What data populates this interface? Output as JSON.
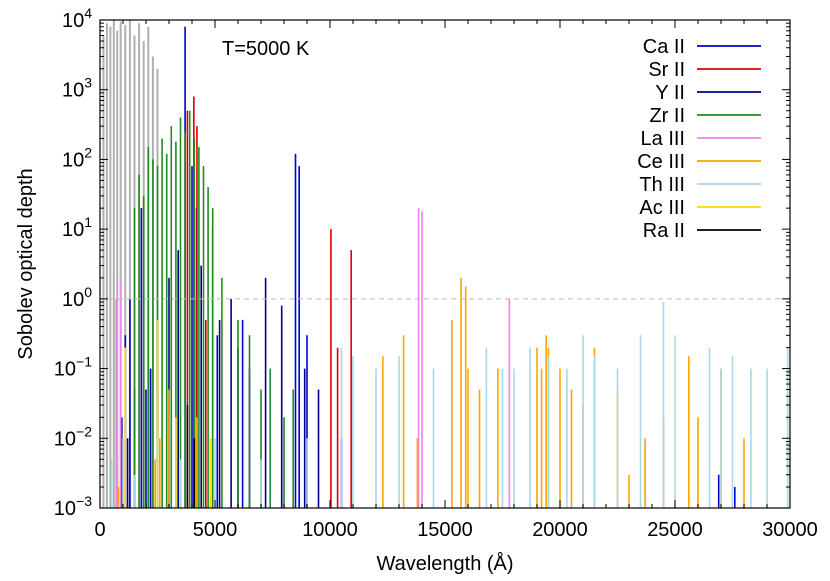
{
  "chart_data": {
    "type": "line",
    "annotation": "T=5000 K",
    "xlabel": "Wavelength (Å)",
    "ylabel": "Sobolev optical depth",
    "xlim": [
      0,
      30000
    ],
    "ylim": [
      0.001,
      10000
    ],
    "y_scale": "log",
    "x_ticks": [
      "0",
      "5000",
      "10000",
      "15000",
      "20000",
      "25000",
      "30000"
    ],
    "x_tick_values": [
      0,
      5000,
      10000,
      15000,
      20000,
      25000,
      30000
    ],
    "y_ticks": [
      {
        "value": 0.001,
        "base": "10",
        "exp": "−3"
      },
      {
        "value": 0.01,
        "base": "10",
        "exp": "−2"
      },
      {
        "value": 0.1,
        "base": "10",
        "exp": "−1"
      },
      {
        "value": 1,
        "base": "10",
        "exp": "0"
      },
      {
        "value": 10,
        "base": "10",
        "exp": "1"
      },
      {
        "value": 100,
        "base": "10",
        "exp": "2"
      },
      {
        "value": 1000,
        "base": "10",
        "exp": "3"
      },
      {
        "value": 10000,
        "base": "10",
        "exp": "4"
      }
    ],
    "reference_line": {
      "y": 1,
      "style": "dashed",
      "color": "#bbbbbb"
    },
    "legend_position": "top-right",
    "background_series": {
      "color": "#b0b0b0",
      "x": [
        150,
        300,
        450,
        600,
        750,
        900,
        1100,
        1300,
        1500,
        1700,
        1900,
        2100,
        2300,
        2500
      ],
      "y": [
        6000,
        9000,
        8000,
        10000,
        7000,
        9500,
        8500,
        10000,
        6000,
        9000,
        5000,
        8000,
        3000,
        2000
      ]
    },
    "series": [
      {
        "name": "Ca II",
        "color": "#0000cc",
        "x": [
          950,
          1100,
          1300,
          1500,
          1800,
          2200,
          3700,
          4000,
          4200,
          5100,
          6200,
          8500,
          8660,
          9000,
          10500,
          26900,
          27600
        ],
        "y": [
          0.02,
          0.3,
          1.0,
          0.05,
          20,
          0.1,
          8000,
          80,
          20,
          0.3,
          0.5,
          120,
          80,
          0.3,
          0.01,
          0.003,
          0.002
        ]
      },
      {
        "name": "Sr II",
        "color": "#dd0000",
        "x": [
          2500,
          3800,
          4080,
          4215,
          4600,
          10040,
          10330,
          10920
        ],
        "y": [
          0.05,
          500,
          800,
          300,
          0.5,
          10,
          0.2,
          5
        ]
      },
      {
        "name": "Y II",
        "color": "#00008b",
        "x": [
          1200,
          2000,
          2500,
          3000,
          3400,
          4100,
          4400,
          4900,
          5200,
          5700,
          6000,
          6500,
          7200,
          7900,
          8900,
          9500
        ],
        "y": [
          0.01,
          0.05,
          0.5,
          2,
          5,
          1,
          3,
          10,
          0.5,
          1,
          0.2,
          0.1,
          2,
          0.8,
          0.1,
          0.05
        ]
      },
      {
        "name": "Zr II",
        "color": "#228b22",
        "x": [
          1500,
          1700,
          1900,
          2100,
          2300,
          2500,
          2700,
          2900,
          3100,
          3300,
          3500,
          3700,
          3900,
          4100,
          4300,
          4500,
          4700,
          4900,
          5300,
          6000,
          6500,
          7000,
          7400,
          8000,
          8400
        ],
        "y": [
          20,
          60,
          30,
          150,
          100,
          80,
          200,
          120,
          300,
          180,
          400,
          250,
          500,
          200,
          150,
          80,
          40,
          20,
          2,
          0.5,
          0.3,
          0.05,
          0.1,
          0.02,
          0.05
        ]
      },
      {
        "name": "La III",
        "color": "#ee82ee",
        "x": [
          700,
          900,
          13850,
          14000,
          17800
        ],
        "y": [
          1.0,
          2.0,
          20,
          18,
          1.0
        ]
      },
      {
        "name": "Ce III",
        "color": "#ffa500",
        "x": [
          700,
          800,
          1000,
          2400,
          2600,
          3000,
          4200,
          12300,
          13200,
          13800,
          15300,
          15700,
          15900,
          16000,
          16500,
          17300,
          19000,
          19200,
          19400,
          19500,
          20000,
          20500,
          21000,
          21500,
          22500,
          23000,
          23700,
          24500,
          25600,
          26000,
          27000,
          28000
        ],
        "y": [
          0.001,
          0.002,
          0.001,
          0.005,
          0.01,
          0.05,
          0.02,
          0.15,
          0.3,
          0.01,
          0.5,
          2,
          1.5,
          0.1,
          0.05,
          0.1,
          0.2,
          0.1,
          0.3,
          0.2,
          0.1,
          0.05,
          0.03,
          0.2,
          0.05,
          0.003,
          0.01,
          0.02,
          0.15,
          0.02,
          0.1,
          0.01
        ]
      },
      {
        "name": "Th III",
        "color": "#a9d7e4",
        "x": [
          500,
          1000,
          1500,
          2500,
          3500,
          5000,
          7000,
          9000,
          10500,
          11000,
          12000,
          13000,
          14500,
          16800,
          17500,
          18000,
          18700,
          19500,
          20300,
          21000,
          21500,
          22500,
          23500,
          24500,
          25000,
          26500,
          27000,
          27500,
          28300,
          29000,
          29900
        ],
        "y": [
          0.005,
          0.01,
          0.003,
          0.01,
          0.005,
          0.01,
          0.005,
          0.01,
          0.2,
          0.15,
          0.1,
          0.15,
          0.1,
          0.2,
          0.1,
          0.1,
          0.2,
          0.15,
          0.1,
          0.3,
          0.15,
          0.1,
          0.3,
          0.9,
          0.3,
          0.2,
          0.1,
          0.15,
          0.1,
          0.1,
          0.2
        ]
      },
      {
        "name": "Ac III",
        "color": "#ffd700",
        "x": [
          1100,
          2500,
          3300,
          4800
        ],
        "y": [
          0.2,
          0.5,
          0.02,
          0.01
        ]
      },
      {
        "name": "Ra II",
        "color": "#000000",
        "x": [
          3800,
          4100
        ],
        "y": [
          0.03,
          0.01
        ]
      }
    ]
  }
}
